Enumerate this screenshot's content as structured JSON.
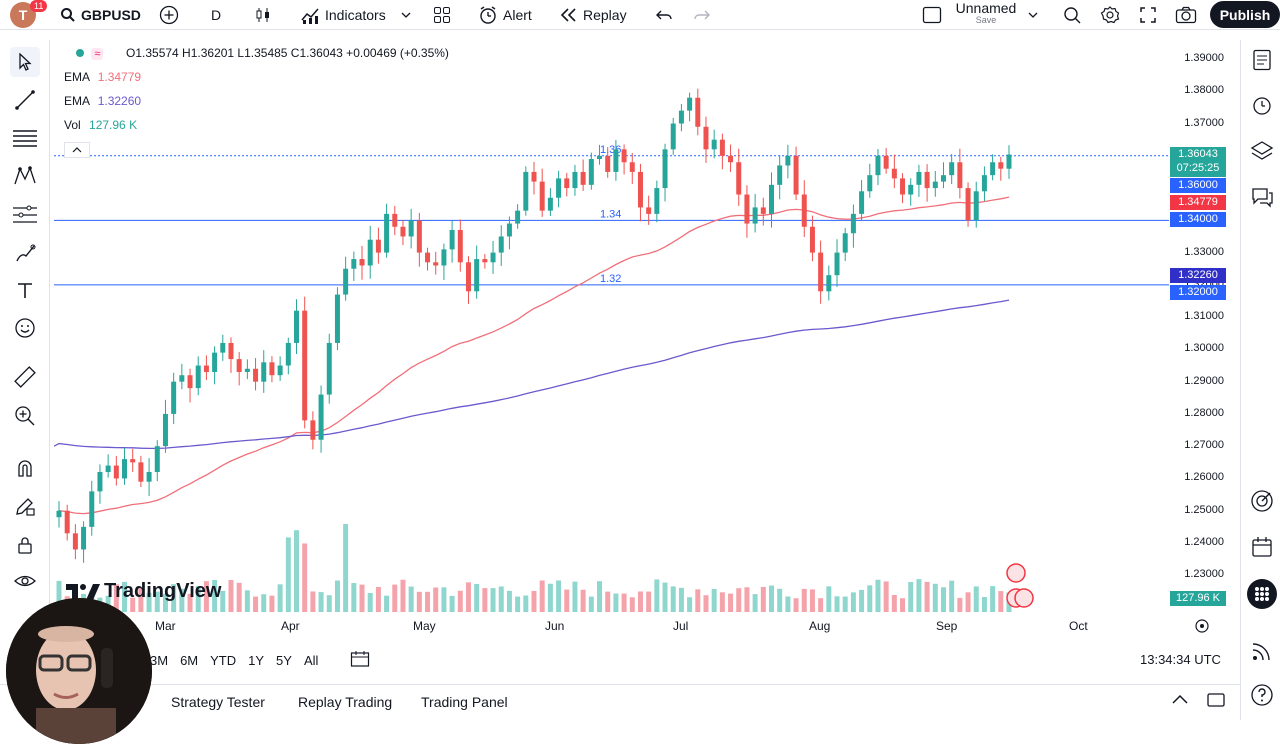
{
  "topbar": {
    "avatar_letter": "T",
    "notification_count": "11",
    "symbol": "GBPUSD",
    "interval": "D",
    "indicators": "Indicators",
    "alert": "Alert",
    "replay": "Replay",
    "layout_name": "Unnamed",
    "layout_status": "Save",
    "publish": "Publish"
  },
  "legend": {
    "ohlc": "O1.35574 H1.36201 L1.35485 C1.36043 +0.00469 (+0.35%)",
    "ema1_label": "EMA",
    "ema1_value": "1.34779",
    "ema2_label": "EMA",
    "ema2_value": "1.32260",
    "vol_label": "Vol",
    "vol_value": "127.96 K"
  },
  "price_axis": [
    "1.39000",
    "1.38000",
    "1.37000",
    "1.36000",
    "1.35000",
    "1.34000",
    "1.33000",
    "1.32000",
    "1.31000",
    "1.30000",
    "1.29000",
    "1.28000",
    "1.27000",
    "1.26000",
    "1.25000",
    "1.24000",
    "1.23000"
  ],
  "price_labels": {
    "last": "1.36043",
    "countdown": "07:25:25",
    "hline1": "1.36000",
    "ema1": "1.34779",
    "hline2": "1.34000",
    "ema2": "1.32260",
    "hline3": "1.32000",
    "volume": "127.96 K"
  },
  "hline_labels": [
    "1.36",
    "1.34",
    "1.32"
  ],
  "time_axis": [
    "Mar",
    "Apr",
    "May",
    "Jun",
    "Jul",
    "Aug",
    "Sep",
    "Oct"
  ],
  "watermark": "TradingView",
  "ranges": [
    "3M",
    "6M",
    "YTD",
    "1Y",
    "5Y",
    "All"
  ],
  "clock": "13:34:34 UTC",
  "bottom_tabs": [
    "Strategy Tester",
    "Replay Trading",
    "Trading Panel"
  ],
  "colors": {
    "up": "#26a69a",
    "down": "#ef5350",
    "ema_fast": "#f06f7a",
    "ema_slow": "#6a5acd",
    "hline": "#2962ff",
    "up_vol": "#8fd7ce",
    "down_vol": "#f5a3aa"
  },
  "chart_data": {
    "type": "candlestick",
    "symbol": "GBPUSD",
    "interval": "D",
    "x_labels": [
      "Mar",
      "Apr",
      "May",
      "Jun",
      "Jul",
      "Aug",
      "Sep",
      "Oct"
    ],
    "ylim": [
      1.23,
      1.39
    ],
    "horizontal_lines": [
      1.36,
      1.34,
      1.32
    ],
    "series": [
      {
        "name": "EMA",
        "last": 1.34779
      },
      {
        "name": "EMA",
        "last": 1.3226
      },
      {
        "name": "Vol",
        "last": "127.96 K"
      }
    ],
    "closes": [
      1.25,
      1.243,
      1.238,
      1.245,
      1.256,
      1.262,
      1.264,
      1.26,
      1.266,
      1.265,
      1.259,
      1.262,
      1.27,
      1.28,
      1.29,
      1.292,
      1.288,
      1.295,
      1.293,
      1.299,
      1.302,
      1.297,
      1.293,
      1.294,
      1.29,
      1.296,
      1.292,
      1.295,
      1.302,
      1.312,
      1.278,
      1.272,
      1.286,
      1.302,
      1.317,
      1.325,
      1.328,
      1.326,
      1.334,
      1.33,
      1.342,
      1.338,
      1.335,
      1.34,
      1.33,
      1.327,
      1.326,
      1.331,
      1.337,
      1.327,
      1.318,
      1.328,
      1.327,
      1.33,
      1.335,
      1.339,
      1.343,
      1.355,
      1.352,
      1.343,
      1.347,
      1.353,
      1.35,
      1.355,
      1.351,
      1.359,
      1.36,
      1.355,
      1.362,
      1.358,
      1.355,
      1.344,
      1.342,
      1.35,
      1.362,
      1.37,
      1.374,
      1.378,
      1.369,
      1.362,
      1.365,
      1.36,
      1.358,
      1.348,
      1.339,
      1.344,
      1.342,
      1.351,
      1.357,
      1.36,
      1.348,
      1.338,
      1.33,
      1.318,
      1.323,
      1.33,
      1.336,
      1.342,
      1.349,
      1.354,
      1.36,
      1.356,
      1.353,
      1.348,
      1.351,
      1.355,
      1.35,
      1.352,
      1.354,
      1.358,
      1.35,
      1.34,
      1.349,
      1.354,
      1.358,
      1.356,
      1.3604
    ]
  }
}
